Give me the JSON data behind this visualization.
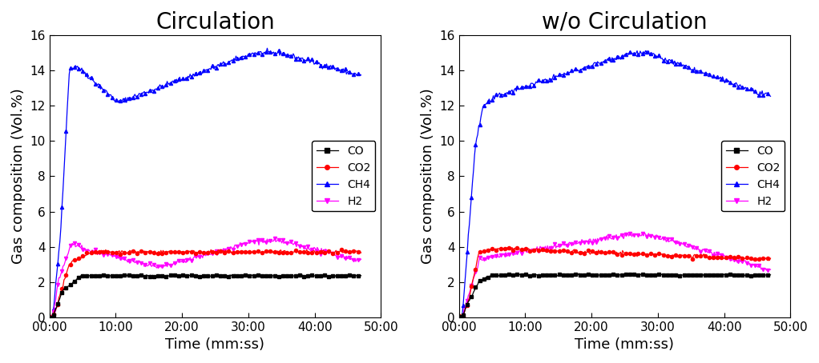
{
  "title_left": "Circulation",
  "title_right": "w/o Circulation",
  "xlabel": "Time (mm:ss)",
  "ylabel": "Gas composition (Vol.%)",
  "ylim": [
    0,
    16
  ],
  "yticks": [
    0,
    2,
    4,
    6,
    8,
    10,
    12,
    14,
    16
  ],
  "xticks_labels": [
    "00:00",
    "10:00",
    "20:00",
    "30:00",
    "40:00",
    "50:00"
  ],
  "xticks_values": [
    0,
    600,
    1200,
    1800,
    2400,
    3000
  ],
  "xlim": [
    0,
    2820
  ],
  "max_time": 2820,
  "colors": {
    "CO": "#000000",
    "CO2": "#ff0000",
    "CH4": "#0000ff",
    "H2": "#ff00ff"
  },
  "title_fontsize": 20,
  "axis_fontsize": 13,
  "tick_fontsize": 11,
  "legend_fontsize": 10,
  "linewidth": 0.9,
  "markersize": 3
}
